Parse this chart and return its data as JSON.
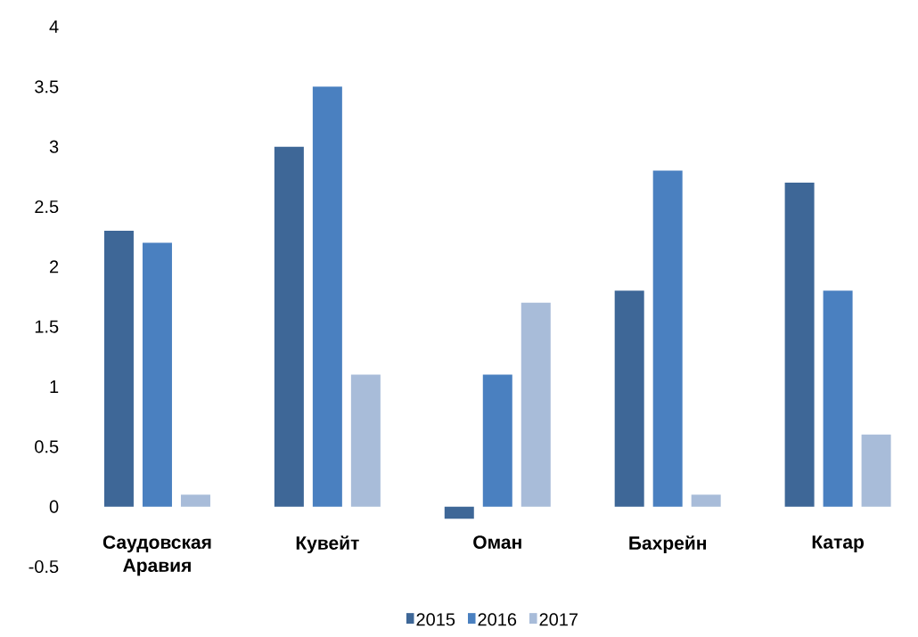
{
  "chart_data": {
    "type": "bar",
    "categories": [
      "Саудовская Аравия",
      "Кувейт",
      "Оман",
      "Бахрейн",
      "Катар"
    ],
    "series": [
      {
        "name": "2015",
        "color": "#3e6797",
        "values": [
          2.3,
          3.0,
          -0.1,
          1.8,
          2.7
        ]
      },
      {
        "name": "2016",
        "color": "#4a80c0",
        "values": [
          2.2,
          3.5,
          1.1,
          2.8,
          1.8
        ]
      },
      {
        "name": "2017",
        "color": "#a8bcd9",
        "values": [
          0.1,
          1.1,
          1.7,
          0.1,
          0.6
        ]
      }
    ],
    "ylim": [
      -0.5,
      4
    ],
    "yticks": [
      -0.5,
      0,
      0.5,
      1,
      1.5,
      2,
      2.5,
      3,
      3.5,
      4
    ],
    "grid": false,
    "legend": "bottom"
  }
}
